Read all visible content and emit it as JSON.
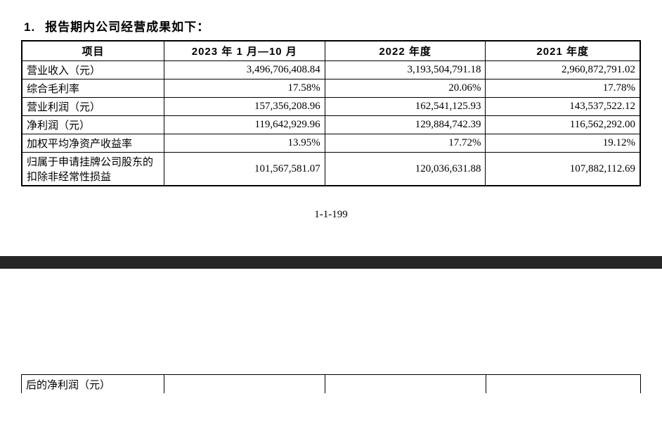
{
  "heading": {
    "num": "1.",
    "text": "报告期内公司经营成果如下：",
    "fontsize": 17
  },
  "page_number": "1-1-199",
  "colors": {
    "background": "#ffffff",
    "text": "#000000",
    "border": "#000000",
    "sep_bar": "#262626"
  },
  "main_table": {
    "type": "table",
    "col_widths_pct": [
      23,
      26,
      26,
      25
    ],
    "header_fontsize": 15,
    "body_fontsize": 15,
    "columns": [
      "项目",
      "2023 年 1 月—10 月",
      "2022 年度",
      "2021 年度"
    ],
    "rows": [
      {
        "label": "营业收入（元）",
        "values": [
          "3,496,706,408.84",
          "3,193,504,791.18",
          "2,960,872,791.02"
        ]
      },
      {
        "label": "综合毛利率",
        "values": [
          "17.58%",
          "20.06%",
          "17.78%"
        ]
      },
      {
        "label": "营业利润（元）",
        "values": [
          "157,356,208.96",
          "162,541,125.93",
          "143,537,522.12"
        ]
      },
      {
        "label": "净利润（元）",
        "values": [
          "119,642,929.96",
          "129,884,742.39",
          "116,562,292.00"
        ]
      },
      {
        "label": "加权平均净资产收益率",
        "values": [
          "13.95%",
          "17.72%",
          "19.12%"
        ]
      },
      {
        "label": "归属于申请挂牌公司股东的扣除非经常性损益",
        "values": [
          "101,567,581.07",
          "120,036,631.88",
          "107,882,112.69"
        ]
      }
    ]
  },
  "footer_table": {
    "type": "table",
    "col_widths_pct": [
      23,
      26,
      26,
      25
    ],
    "body_fontsize": 15,
    "row": {
      "label": "后的净利润（元）",
      "values": [
        "",
        "",
        ""
      ]
    }
  }
}
